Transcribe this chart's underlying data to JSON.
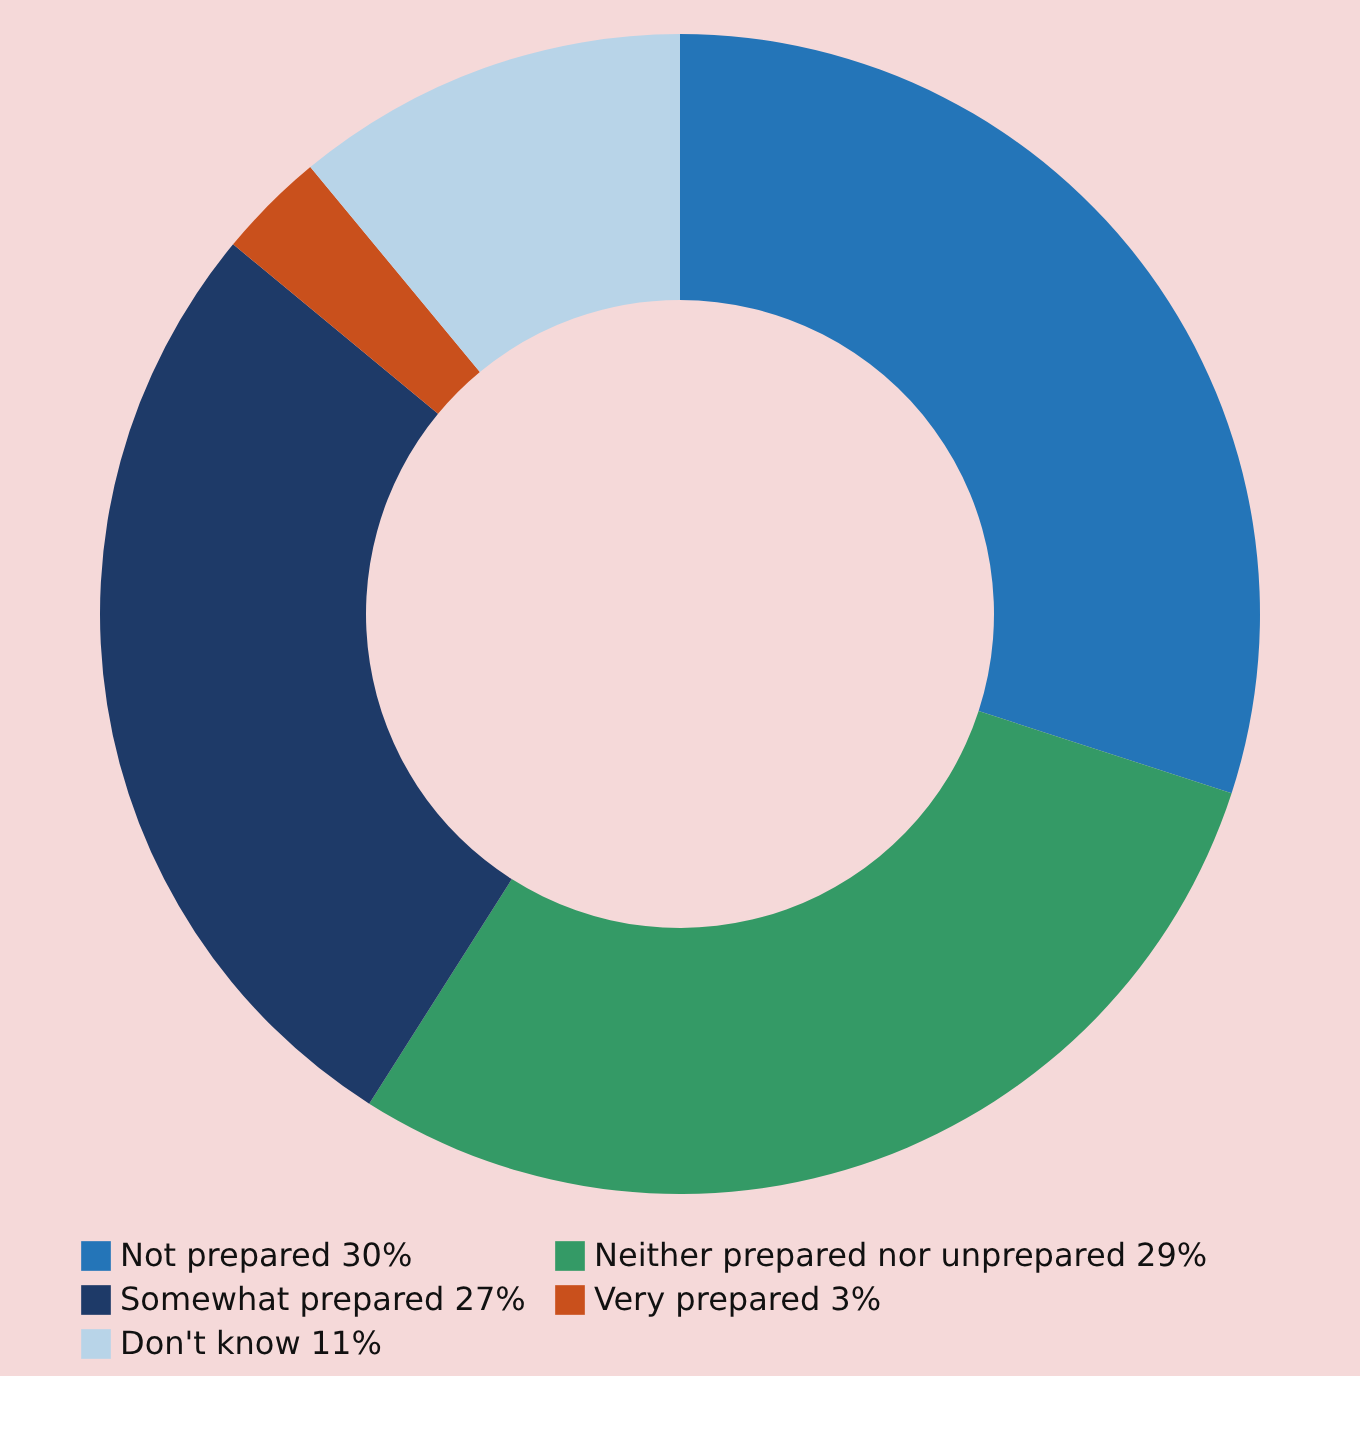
{
  "chart_data": {
    "type": "donut",
    "categories": [
      "Not prepared",
      "Neither prepared nor unprepared",
      "Somewhat prepared",
      "Very prepared",
      "Don't know"
    ],
    "values": [
      30,
      29,
      27,
      3,
      11
    ],
    "value_labels": [
      "30%",
      "29%",
      "27%",
      "3%",
      "11%"
    ],
    "colors": [
      "#2475b8",
      "#349a66",
      "#1e3a68",
      "#c9501c",
      "#b8d4e8"
    ],
    "legend": "bottom"
  }
}
